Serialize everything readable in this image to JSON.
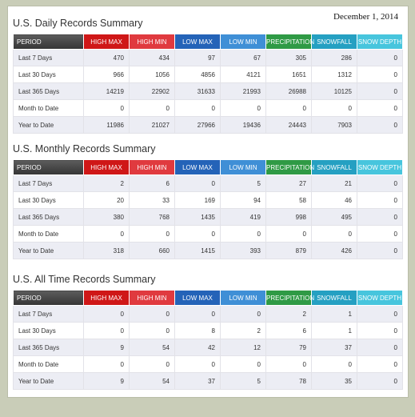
{
  "date": "December 1, 2014",
  "columns": [
    "PERIOD",
    "HIGH MAX",
    "HIGH MIN",
    "LOW MAX",
    "LOW MIN",
    "PRECIPITATION",
    "SNOWFALL",
    "SNOW DEPTH"
  ],
  "column_colors": [
    "#444444",
    "#cf1717",
    "#e03a3f",
    "#2463b8",
    "#3f8fd6",
    "#2f9a45",
    "#25a0c2",
    "#47c5dd"
  ],
  "sections": [
    {
      "title": "U.S. Daily Records Summary",
      "rows": [
        {
          "period": "Last 7 Days",
          "values": [
            "470",
            "434",
            "97",
            "67",
            "305",
            "286",
            "0"
          ]
        },
        {
          "period": "Last 30 Days",
          "values": [
            "966",
            "1056",
            "4856",
            "4121",
            "1651",
            "1312",
            "0"
          ]
        },
        {
          "period": "Last 365 Days",
          "values": [
            "14219",
            "22902",
            "31633",
            "21993",
            "26988",
            "10125",
            "0"
          ]
        },
        {
          "period": "Month to Date",
          "values": [
            "0",
            "0",
            "0",
            "0",
            "0",
            "0",
            "0"
          ]
        },
        {
          "period": "Year to Date",
          "values": [
            "11986",
            "21027",
            "27966",
            "19436",
            "24443",
            "7903",
            "0"
          ]
        }
      ]
    },
    {
      "title": "U.S. Monthly Records Summary",
      "rows": [
        {
          "period": "Last 7 Days",
          "values": [
            "2",
            "6",
            "0",
            "5",
            "27",
            "21",
            "0"
          ]
        },
        {
          "period": "Last 30 Days",
          "values": [
            "20",
            "33",
            "169",
            "94",
            "58",
            "46",
            "0"
          ]
        },
        {
          "period": "Last 365 Days",
          "values": [
            "380",
            "768",
            "1435",
            "419",
            "998",
            "495",
            "0"
          ]
        },
        {
          "period": "Month to Date",
          "values": [
            "0",
            "0",
            "0",
            "0",
            "0",
            "0",
            "0"
          ]
        },
        {
          "period": "Year to Date",
          "values": [
            "318",
            "660",
            "1415",
            "393",
            "879",
            "426",
            "0"
          ]
        }
      ]
    },
    {
      "title": "U.S. All Time Records Summary",
      "rows": [
        {
          "period": "Last 7 Days",
          "values": [
            "0",
            "0",
            "0",
            "0",
            "2",
            "1",
            "0"
          ]
        },
        {
          "period": "Last 30 Days",
          "values": [
            "0",
            "0",
            "8",
            "2",
            "6",
            "1",
            "0"
          ]
        },
        {
          "period": "Last 365 Days",
          "values": [
            "9",
            "54",
            "42",
            "12",
            "79",
            "37",
            "0"
          ]
        },
        {
          "period": "Month to Date",
          "values": [
            "0",
            "0",
            "0",
            "0",
            "0",
            "0",
            "0"
          ]
        },
        {
          "period": "Year to Date",
          "values": [
            "9",
            "54",
            "37",
            "5",
            "78",
            "35",
            "0"
          ]
        }
      ]
    }
  ]
}
